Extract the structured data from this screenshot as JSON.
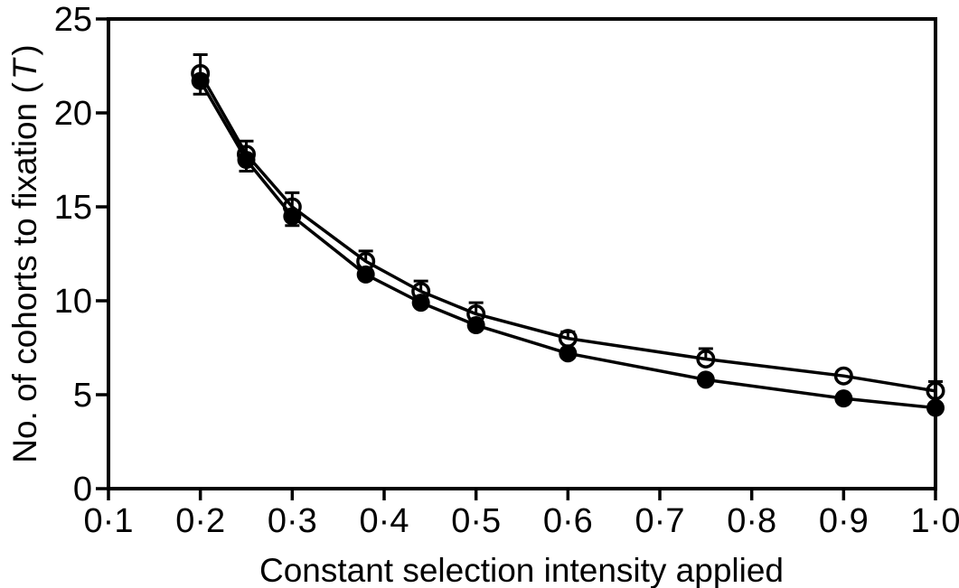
{
  "figure": {
    "kind": "scientific line chart with error bars",
    "background": "#ffffff"
  },
  "chart_data": {
    "type": "line",
    "title": "",
    "xlabel": "Constant selection intensity applied",
    "ylabel": "No. of cohorts to fixation (T)",
    "ylabel_parts": {
      "prefix": "No. of cohorts to fixation (",
      "italic_var": "T",
      "suffix": ")"
    },
    "xlim": [
      0.1,
      1.0
    ],
    "ylim": [
      0,
      25
    ],
    "grid": false,
    "legend": "none",
    "frame": "full-box",
    "x_ticks": [
      0.1,
      0.2,
      0.3,
      0.4,
      0.5,
      0.6,
      0.7,
      0.8,
      0.9,
      1.0
    ],
    "x_tick_labels": [
      "0·1",
      "0·2",
      "0·3",
      "0·4",
      "0·5",
      "0·6",
      "0·7",
      "0·8",
      "0·9",
      "1·0"
    ],
    "y_ticks": [
      0,
      5,
      10,
      15,
      20,
      25
    ],
    "y_tick_labels": [
      "0",
      "5",
      "10",
      "15",
      "20",
      "25"
    ],
    "x": [
      0.2,
      0.25,
      0.3,
      0.38,
      0.44,
      0.5,
      0.6,
      0.75,
      0.9,
      1.0
    ],
    "series": [
      {
        "name": "open-circles",
        "marker": "open-circle",
        "values": [
          22.1,
          17.8,
          15.0,
          12.1,
          10.5,
          9.3,
          8.0,
          6.9,
          6.0,
          5.2
        ],
        "error_plus": [
          1.0,
          0.7,
          0.75,
          0.55,
          0.55,
          0.6,
          0.35,
          0.55,
          0,
          0.5
        ],
        "error_minus": [
          1.1,
          0.9,
          1.0,
          0,
          0,
          0,
          0,
          0,
          0,
          0
        ]
      },
      {
        "name": "filled-circles",
        "marker": "filled-circle",
        "values": [
          21.7,
          17.5,
          14.5,
          11.4,
          9.9,
          8.7,
          7.2,
          5.8,
          4.8,
          4.3
        ],
        "error_plus": [
          0,
          0,
          0,
          0,
          0,
          0,
          0,
          0,
          0,
          0
        ],
        "error_minus": [
          0,
          0,
          0,
          0,
          0,
          0,
          0,
          0,
          0,
          0
        ]
      }
    ],
    "colors": {
      "ink": "#000000",
      "background": "#ffffff"
    }
  }
}
